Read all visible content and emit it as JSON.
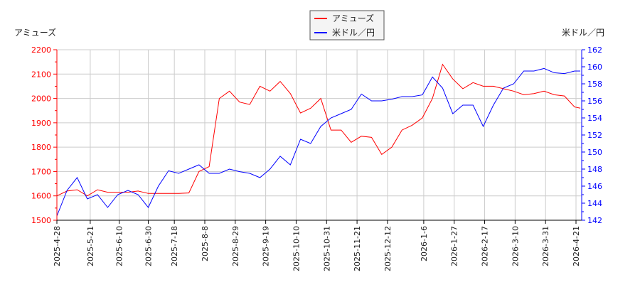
{
  "chart_data": {
    "type": "line",
    "left_axis_label": "アミューズ",
    "right_axis_label": "米ドル／円",
    "left_ylim": [
      1500,
      2200
    ],
    "left_ticks": [
      1500,
      1600,
      1700,
      1800,
      1900,
      2000,
      2100,
      2200
    ],
    "right_ylim": [
      142,
      162
    ],
    "right_ticks": [
      142,
      144,
      146,
      148,
      150,
      152,
      154,
      156,
      158,
      160,
      162
    ],
    "x_ticks": [
      "2025-4-28",
      "2025-5-21",
      "2025-6-10",
      "2025-6-30",
      "2025-7-18",
      "2025-8-8",
      "2025-8-29",
      "2025-9-19",
      "2025-10-10",
      "2025-10-31",
      "2025-11-21",
      "2025-12-12",
      "2026-1-6",
      "2026-1-27",
      "2026-2-17",
      "2026-3-10",
      "2026-3-31",
      "2026-4-21"
    ],
    "grid": true,
    "legend_placement": "top-center",
    "colors": {
      "amuse": "#ff0000",
      "usdjpy": "#0000ff"
    },
    "x": [
      "2025-4-28",
      "2025-5-5",
      "2025-5-12",
      "2025-5-19",
      "2025-5-26",
      "2025-6-2",
      "2025-6-9",
      "2025-6-16",
      "2025-6-23",
      "2025-6-30",
      "2025-7-7",
      "2025-7-14",
      "2025-7-21",
      "2025-7-28",
      "2025-8-4",
      "2025-8-11",
      "2025-8-18",
      "2025-8-25",
      "2025-9-1",
      "2025-9-8",
      "2025-9-15",
      "2025-9-22",
      "2025-9-29",
      "2025-10-6",
      "2025-10-13",
      "2025-10-20",
      "2025-10-27",
      "2025-11-3",
      "2025-11-10",
      "2025-11-17",
      "2025-11-24",
      "2025-12-1",
      "2025-12-8",
      "2025-12-15",
      "2025-12-22",
      "2025-12-29",
      "2026-1-5",
      "2026-1-12",
      "2026-1-19",
      "2026-1-26",
      "2026-2-2",
      "2026-2-9",
      "2026-2-16",
      "2026-2-23",
      "2026-3-2",
      "2026-3-9",
      "2026-3-16",
      "2026-3-23",
      "2026-3-30",
      "2026-4-6",
      "2026-4-13",
      "2026-4-20",
      "2026-4-24"
    ],
    "series": [
      {
        "name": "アミューズ",
        "axis": "left",
        "values": [
          1600,
          1620,
          1625,
          1600,
          1625,
          1615,
          1615,
          1615,
          1620,
          1610,
          1610,
          1610,
          1610,
          1612,
          1700,
          1720,
          2000,
          2030,
          1985,
          1975,
          2050,
          2030,
          2070,
          2020,
          1940,
          1960,
          2000,
          1870,
          1870,
          1820,
          1845,
          1840,
          1770,
          1800,
          1870,
          1890,
          1920,
          2000,
          2140,
          2080,
          2040,
          2065,
          2050,
          2050,
          2040,
          2030,
          2015,
          2020,
          2030,
          2015,
          2010,
          1965,
          1960
        ]
      },
      {
        "name": "米ドル／円",
        "axis": "right",
        "values": [
          142.5,
          145.5,
          147,
          144.5,
          145,
          143.5,
          145,
          145.5,
          145,
          143.5,
          146,
          147.8,
          147.5,
          148,
          148.5,
          147.5,
          147.5,
          148,
          147.7,
          147.5,
          147,
          148,
          149.5,
          148.5,
          151.5,
          151,
          153,
          154,
          154.5,
          155,
          156.8,
          156,
          156,
          156.2,
          156.5,
          156.5,
          156.7,
          158.8,
          157.5,
          154.5,
          155.5,
          155.5,
          153,
          155.5,
          157.5,
          158,
          159.5,
          159.5,
          159.8,
          159.3,
          159.2,
          159.5,
          159.5
        ]
      }
    ]
  }
}
